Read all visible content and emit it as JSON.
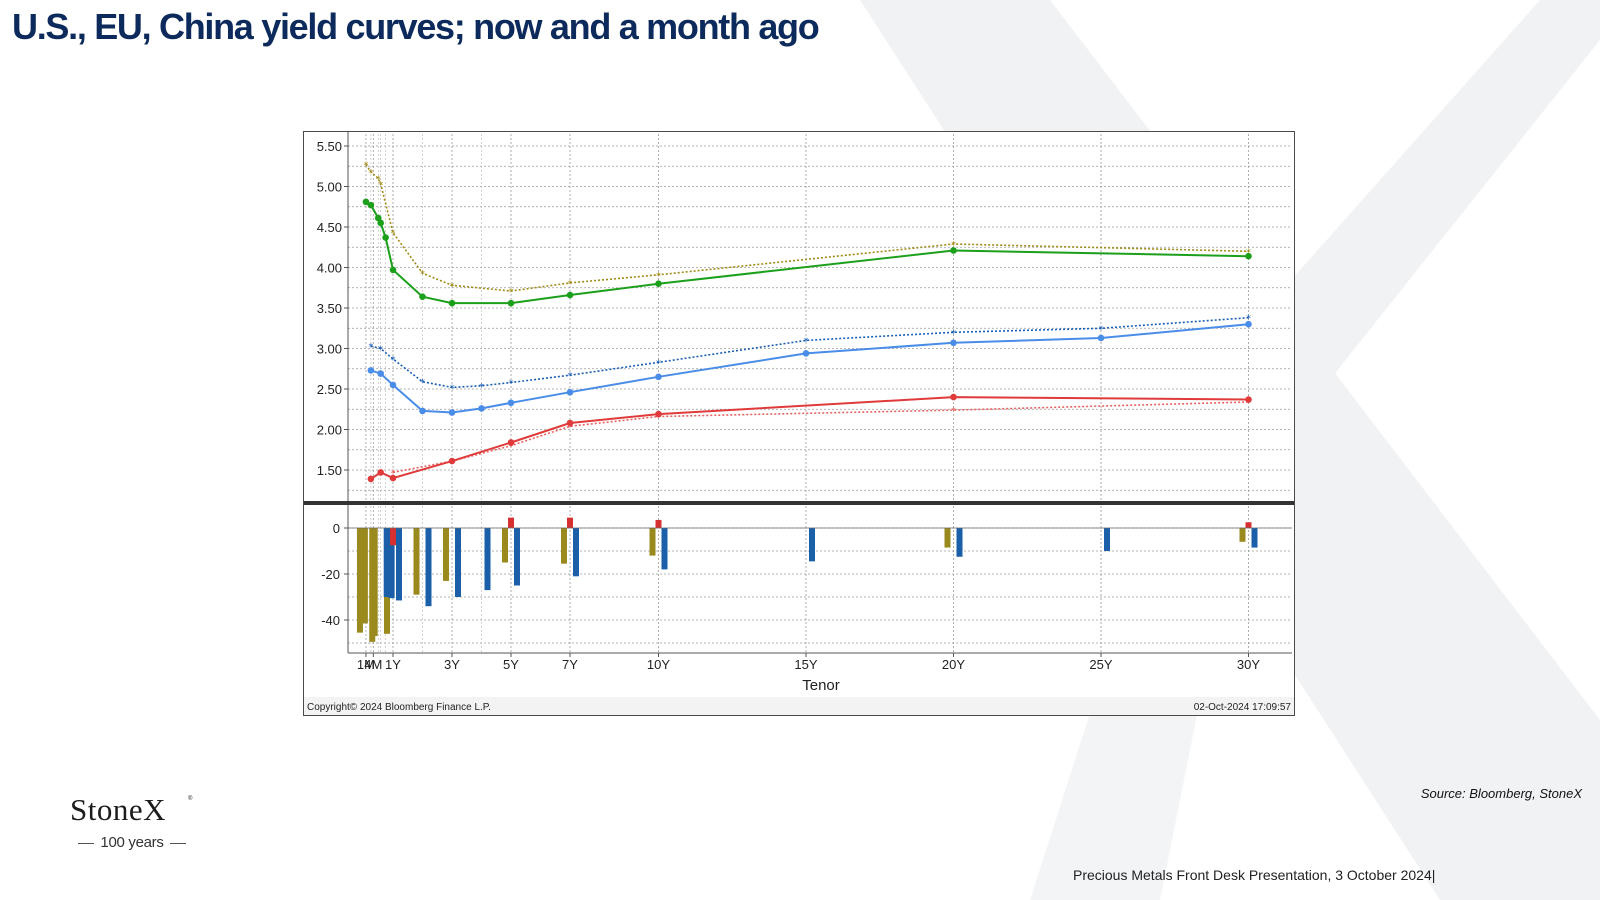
{
  "slide": {
    "title": "U.S., EU, China yield curves; now and a month ago",
    "source": "Source: Bloomberg, StoneX",
    "footer": "Precious Metals Front Desk Presentation, 3 October 2024|",
    "logo_name": "StoneX",
    "logo_registered": "®",
    "logo_sub": "100 years"
  },
  "colors": {
    "title": "#0d2a5c",
    "us_now": "#1ca01c",
    "us_month_ago": "#a08a14",
    "eu_now": "#4a8de8",
    "eu_month_ago": "#1a5fb4",
    "china_now": "#e03a3a",
    "china_month_ago": "#e86060",
    "bar_us": "#9a8a1e",
    "bar_eu": "#1a5fa8",
    "bar_china": "#d63030"
  },
  "chart_data": [
    {
      "type": "line",
      "xlabel": "Tenor",
      "ylim": [
        1.0,
        5.6
      ],
      "yticks": [
        "5.50",
        "5.00",
        "4.50",
        "4.00",
        "3.50",
        "3.00",
        "2.50",
        "2.00",
        "1.50"
      ],
      "ytick_values": [
        5.5,
        5.0,
        4.5,
        4.0,
        3.5,
        3.0,
        2.5,
        2.0,
        1.5
      ],
      "xlim": [
        0,
        30.7
      ],
      "xticks": [
        "1M",
        "4M",
        "1Y",
        "3Y",
        "5Y",
        "7Y",
        "10Y",
        "15Y",
        "20Y",
        "25Y",
        "30Y"
      ],
      "xtick_values": [
        0.083,
        0.333,
        1,
        3,
        5,
        7,
        10,
        15,
        20,
        25,
        30
      ],
      "grid": true,
      "series": [
        {
          "key": "us_month_ago",
          "style": "dotted",
          "marker": "star",
          "points": [
            [
              0.083,
              5.27
            ],
            [
              0.25,
              5.18
            ],
            [
              0.5,
              5.1
            ],
            [
              0.583,
              5.03
            ],
            [
              1,
              4.43
            ],
            [
              2,
              3.93
            ],
            [
              3,
              3.78
            ],
            [
              5,
              3.71
            ],
            [
              7,
              3.81
            ],
            [
              10,
              3.91
            ],
            [
              20,
              4.29
            ],
            [
              30,
              4.2
            ]
          ]
        },
        {
          "key": "us_now",
          "style": "solid",
          "marker": "dot",
          "points": [
            [
              0.083,
              4.81
            ],
            [
              0.25,
              4.77
            ],
            [
              0.5,
              4.61
            ],
            [
              0.583,
              4.55
            ],
            [
              0.75,
              4.37
            ],
            [
              1,
              3.97
            ],
            [
              2,
              3.64
            ],
            [
              3,
              3.56
            ],
            [
              5,
              3.56
            ],
            [
              7,
              3.66
            ],
            [
              10,
              3.8
            ],
            [
              20,
              4.21
            ],
            [
              30,
              4.14
            ]
          ]
        },
        {
          "key": "eu_month_ago",
          "style": "dotted",
          "marker": "star",
          "points": [
            [
              0.25,
              3.03
            ],
            [
              0.583,
              3.0
            ],
            [
              1,
              2.87
            ],
            [
              2,
              2.59
            ],
            [
              3,
              2.52
            ],
            [
              4,
              2.54
            ],
            [
              5,
              2.58
            ],
            [
              7,
              2.67
            ],
            [
              10,
              2.83
            ],
            [
              15,
              3.1
            ],
            [
              20,
              3.2
            ],
            [
              25,
              3.25
            ],
            [
              30,
              3.38
            ]
          ]
        },
        {
          "key": "eu_now",
          "style": "solid",
          "marker": "dot",
          "points": [
            [
              0.25,
              2.73
            ],
            [
              0.583,
              2.69
            ],
            [
              1,
              2.55
            ],
            [
              2,
              2.23
            ],
            [
              3,
              2.21
            ],
            [
              4,
              2.26
            ],
            [
              5,
              2.33
            ],
            [
              7,
              2.46
            ],
            [
              10,
              2.65
            ],
            [
              15,
              2.94
            ],
            [
              20,
              3.07
            ],
            [
              25,
              3.13
            ],
            [
              30,
              3.3
            ]
          ]
        },
        {
          "key": "china_month_ago",
          "style": "dotted",
          "marker": "star",
          "points": [
            [
              1,
              1.47
            ],
            [
              3,
              1.61
            ],
            [
              5,
              1.8
            ],
            [
              7,
              2.04
            ],
            [
              10,
              2.16
            ],
            [
              20,
              2.24
            ],
            [
              30,
              2.34
            ]
          ]
        },
        {
          "key": "china_now",
          "style": "solid",
          "marker": "dot",
          "points": [
            [
              0.25,
              1.39
            ],
            [
              0.583,
              1.47
            ],
            [
              1,
              1.4
            ],
            [
              3,
              1.61
            ],
            [
              5,
              1.84
            ],
            [
              7,
              2.08
            ],
            [
              10,
              2.19
            ],
            [
              20,
              2.4
            ],
            [
              30,
              2.37
            ]
          ]
        }
      ]
    },
    {
      "type": "bar",
      "ylim": [
        -50,
        7
      ],
      "yticks": [
        "0",
        "-20",
        "-40"
      ],
      "ytick_values": [
        0,
        -20,
        -40
      ],
      "series": [
        {
          "key": "bar_us",
          "bars": [
            [
              0.083,
              -45.5
            ],
            [
              0.25,
              -41.5
            ],
            [
              0.5,
              -49.5
            ],
            [
              0.583,
              -47
            ],
            [
              1,
              -46
            ],
            [
              2,
              -29
            ],
            [
              3,
              -23
            ],
            [
              5,
              -15
            ],
            [
              7,
              -15.5
            ],
            [
              10,
              -12
            ],
            [
              20,
              -8.5
            ],
            [
              30,
              -6
            ]
          ]
        },
        {
          "key": "bar_eu",
          "bars": [
            [
              0.583,
              -30
            ],
            [
              0.75,
              -30.5
            ],
            [
              1,
              -31.5
            ],
            [
              2,
              -34
            ],
            [
              3,
              -30
            ],
            [
              4,
              -27
            ],
            [
              5,
              -25
            ],
            [
              7,
              -21
            ],
            [
              10,
              -18
            ],
            [
              15,
              -14.5
            ],
            [
              20,
              -12.5
            ],
            [
              25,
              -10
            ],
            [
              30,
              -8.5
            ]
          ]
        },
        {
          "key": "bar_china",
          "bars": [
            [
              1,
              -7.5
            ],
            [
              5,
              4.5
            ],
            [
              7,
              4.5
            ],
            [
              10,
              3.5
            ],
            [
              30,
              2.5
            ]
          ]
        }
      ]
    }
  ],
  "bloomberg": {
    "copyright": "Copyright© 2024 Bloomberg Finance L.P.",
    "timestamp": "02-Oct-2024 17:09:57"
  }
}
